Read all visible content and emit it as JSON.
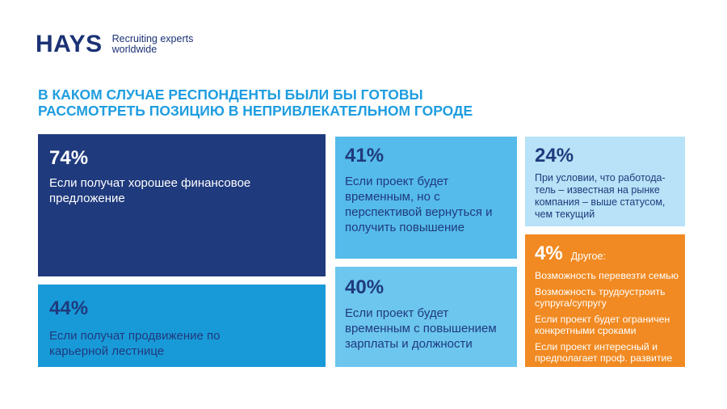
{
  "logo": {
    "word": "HAYS",
    "tagline_line1": "Recruiting experts",
    "tagline_line2": "worldwide"
  },
  "title": {
    "line1": "В КАКОМ СЛУЧАЕ РЕСПОНДЕНТЫ БЫЛИ БЫ ГОТОВЫ",
    "line2": "РАССМОТРЕТЬ ПОЗИЦИЮ В НЕПРИВЛЕКАТЕЛЬНОМ ГОРОДЕ"
  },
  "colors": {
    "navy": "#1f3a7d",
    "blue": "#199ad8",
    "mid_blue": "#55bbea",
    "light_blue": "#6cc6ee",
    "pale_blue": "#b7e2f7",
    "orange": "#f18a22",
    "title_blue": "#1e9de0"
  },
  "chart_data": {
    "type": "treemap",
    "title": "В КАКОМ СЛУЧАЕ РЕСПОНДЕНТЫ БЫЛИ БЫ ГОТОВЫ РАССМОТРЕТЬ ПОЗИЦИЮ В НЕПРИВЛЕКАТЕЛЬНОМ ГОРОДЕ",
    "items": [
      {
        "value": 74,
        "value_label": "74%",
        "label": "Если получат хорошее финансовое предложение",
        "color": "#1f3a7d"
      },
      {
        "value": 44,
        "value_label": "44%",
        "label": "Если получат продвижение по карьерной лестнице",
        "color": "#199ad8"
      },
      {
        "value": 41,
        "value_label": "41%",
        "label": "Если проект будет временным, но с перспективой вернуться и получить повышение",
        "color": "#55bbea"
      },
      {
        "value": 40,
        "value_label": "40%",
        "label": "Если проект будет временным с повышением зарплаты и должности",
        "color": "#6cc6ee"
      },
      {
        "value": 24,
        "value_label": "24%",
        "label": "При условии, что работода-тель – известная на рынке компания – выше статусом, чем текущий",
        "color": "#b7e2f7"
      },
      {
        "value": 4,
        "value_label": "4%",
        "label": "Другое:",
        "color": "#f18a22",
        "sub_items": [
          "Возможность перевезти семью",
          "Возможность трудоустроить супруга/супругу",
          "Если проект будет ограничен конкретными сроками",
          "Если проект интересный и предполагает проф. развитие"
        ]
      }
    ]
  }
}
